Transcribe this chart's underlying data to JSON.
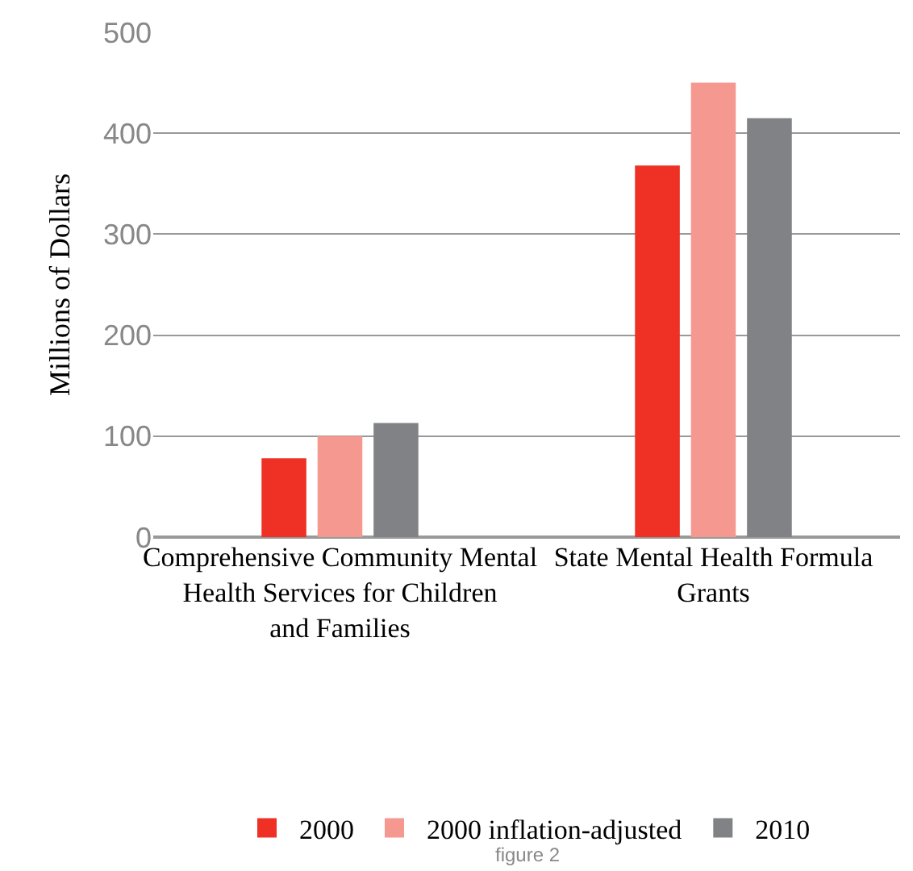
{
  "chart_data": {
    "type": "bar",
    "ylabel": "Millions of Dollars",
    "categories": [
      "Comprehensive Community Mental Health Services for Children and Families",
      "State Mental Health Formula Grants"
    ],
    "series": [
      {
        "name": "2000",
        "color": "#ee3124",
        "values": [
          78,
          368
        ]
      },
      {
        "name": "2000 inflation-adjusted",
        "color": "#f59890",
        "values": [
          100,
          450
        ]
      },
      {
        "name": "2010",
        "color": "#808285",
        "values": [
          113,
          415
        ]
      }
    ],
    "ylim": [
      0,
      500
    ],
    "yticks": [
      0,
      100,
      200,
      300,
      400,
      500
    ],
    "grid": "y",
    "legend": "bottom",
    "annotations": [
      "figure 2"
    ]
  }
}
